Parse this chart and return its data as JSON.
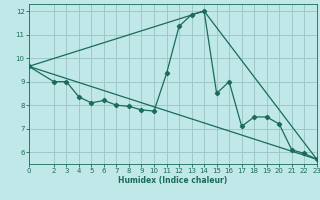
{
  "title": "",
  "xlabel": "Humidex (Indice chaleur)",
  "ylabel": "",
  "bg_color": "#c0e8e8",
  "grid_color": "#a0c8c8",
  "line_color": "#1a6b5a",
  "xlim": [
    0,
    23
  ],
  "ylim": [
    5.5,
    12.3
  ],
  "xticks": [
    0,
    2,
    3,
    4,
    5,
    6,
    7,
    8,
    9,
    10,
    11,
    12,
    13,
    14,
    15,
    16,
    17,
    18,
    19,
    20,
    21,
    22,
    23
  ],
  "yticks": [
    6,
    7,
    8,
    9,
    10,
    11,
    12
  ],
  "series1_x": [
    0,
    2,
    3,
    4,
    5,
    6,
    7,
    8,
    9,
    10,
    11,
    12,
    13,
    14,
    15,
    16,
    17,
    18,
    19,
    20,
    21,
    22,
    23
  ],
  "series1_y": [
    9.65,
    9.0,
    9.0,
    8.35,
    8.1,
    8.2,
    8.0,
    7.95,
    7.8,
    7.75,
    9.35,
    11.35,
    11.85,
    12.0,
    8.5,
    9.0,
    7.1,
    7.5,
    7.5,
    7.2,
    6.1,
    5.95,
    5.7
  ],
  "series2_x": [
    0,
    23
  ],
  "series2_y": [
    9.65,
    5.7
  ],
  "series3_x": [
    0,
    14,
    23
  ],
  "series3_y": [
    9.65,
    12.0,
    5.7
  ]
}
